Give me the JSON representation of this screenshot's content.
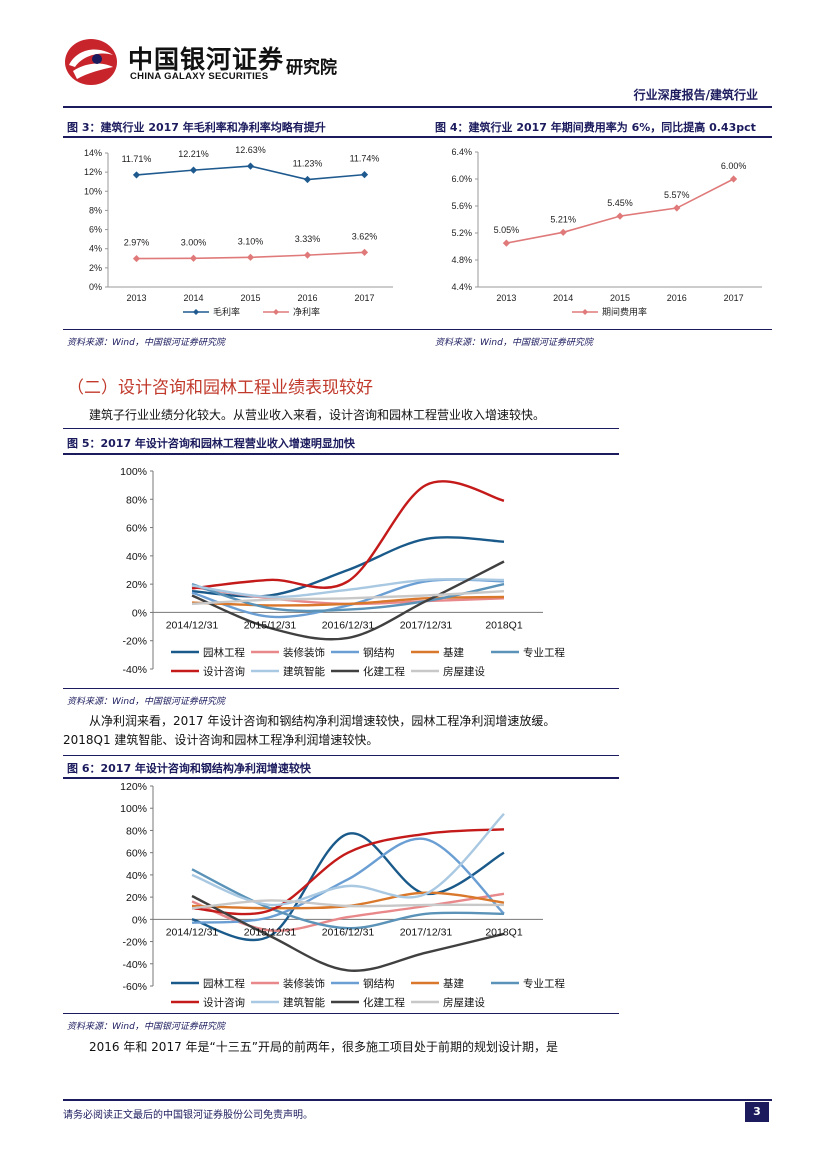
{
  "header": {
    "logo_cn": "中国银河证券",
    "logo_en": "CHINA GALAXY SECURITIES",
    "institute": "研究院",
    "report_type": "行业深度报告/建筑行业"
  },
  "fig3": {
    "title": "图 3：建筑行业 2017 年毛利率和净利率均略有提升",
    "source": "资料来源：Wind，中国银河证券研究院"
  },
  "fig4": {
    "title": "图 4：建筑行业 2017 年期间费用率为 6%，同比提高 0.43pct",
    "source": "资料来源：Wind，中国银河证券研究院"
  },
  "section": {
    "title": "（二）设计咨询和园林工程业绩表现较好",
    "para1": "建筑子行业业绩分化较大。从营业收入来看，设计咨询和园林工程营业收入增速较快。"
  },
  "fig5": {
    "title": "图 5：2017 年设计咨询和园林工程营业收入增速明显加快",
    "source": "资料来源：Wind，中国银河证券研究院"
  },
  "para2_line1": "从净利润来看，2017 年设计咨询和钢结构净利润增速较快，园林工程净利润增速放缓。",
  "para2_line2": "2018Q1 建筑智能、设计咨询和园林工程净利润增速较快。",
  "fig6": {
    "title": "图 6：2017 年设计咨询和钢结构净利润增速较快",
    "source": "资料来源：Wind，中国银河证券研究院"
  },
  "para3": "2016 年和 2017 年是“十三五”开局的前两年，很多施工项目处于前期的规划设计期，是",
  "footer": {
    "disclaimer": "请务必阅读正文最后的中国银河证券股份公司免责声明。",
    "page": "3"
  },
  "colors": {
    "园林工程": "#1a5a8a",
    "装修装饰": "#e8888a",
    "钢结构": "#6b9fd4",
    "基建": "#d9772b",
    "专业工程": "#5b93b8",
    "设计咨询": "#c41a1a",
    "建筑智能": "#a9c8e2",
    "化建工程": "#404040",
    "房屋建设": "#c8c8c8",
    "毛利率": "#1f5a8f",
    "净利率": "#e07a7a",
    "期间费用率": "#e07a7a"
  },
  "chart_data": [
    {
      "id": "fig3",
      "type": "line",
      "categories": [
        "2013",
        "2014",
        "2015",
        "2016",
        "2017"
      ],
      "ylim": [
        0,
        14
      ],
      "yticks": [
        0,
        2,
        4,
        6,
        8,
        10,
        12,
        14
      ],
      "tick_suffix": "%",
      "series": [
        {
          "name": "毛利率",
          "values": [
            11.71,
            12.21,
            12.63,
            11.23,
            11.74
          ],
          "labels": [
            "11.71%",
            "12.21%",
            "12.63%",
            "11.23%",
            "11.74%"
          ],
          "marker": "diamond"
        },
        {
          "name": "净利率",
          "values": [
            2.97,
            3.0,
            3.1,
            3.33,
            3.62
          ],
          "labels": [
            "2.97%",
            "3.00%",
            "3.10%",
            "3.33%",
            "3.62%"
          ],
          "marker": "diamond"
        }
      ]
    },
    {
      "id": "fig4",
      "type": "line",
      "categories": [
        "2013",
        "2014",
        "2015",
        "2016",
        "2017"
      ],
      "ylim": [
        4.4,
        6.4
      ],
      "yticks": [
        4.4,
        4.8,
        5.2,
        5.6,
        6.0,
        6.4
      ],
      "tick_labels": [
        "4.4%",
        "4.8%",
        "5.2%",
        "5.6%",
        "6.0%",
        "6.4%"
      ],
      "series": [
        {
          "name": "期间费用率",
          "values": [
            5.05,
            5.21,
            5.45,
            5.57,
            6.0
          ],
          "labels": [
            "5.05%",
            "5.21%",
            "5.45%",
            "5.57%",
            "6.00%"
          ],
          "marker": "diamond"
        }
      ]
    },
    {
      "id": "fig5",
      "type": "line",
      "categories": [
        "2014/12/31",
        "2015/12/31",
        "2016/12/31",
        "2017/12/31",
        "2018Q1"
      ],
      "ylim": [
        -40,
        100
      ],
      "yticks": [
        -40,
        -20,
        0,
        20,
        40,
        60,
        80,
        100
      ],
      "tick_suffix": "%",
      "series": [
        {
          "name": "园林工程",
          "values": [
            15,
            12,
            30,
            52,
            50
          ]
        },
        {
          "name": "装修装饰",
          "values": [
            18,
            10,
            6,
            8,
            10
          ]
        },
        {
          "name": "钢结构",
          "values": [
            14,
            -3,
            5,
            22,
            22
          ]
        },
        {
          "name": "基建",
          "values": [
            7,
            5,
            6,
            10,
            11
          ]
        },
        {
          "name": "专业工程",
          "values": [
            20,
            3,
            2,
            8,
            20
          ]
        },
        {
          "name": "设计咨询",
          "values": [
            17,
            23,
            22,
            90,
            79
          ]
        },
        {
          "name": "建筑智能",
          "values": [
            19,
            11,
            16,
            23,
            23
          ]
        },
        {
          "name": "化建工程",
          "values": [
            12,
            -11,
            -18,
            8,
            36
          ]
        },
        {
          "name": "房屋建设",
          "values": [
            6,
            9,
            10,
            12,
            15
          ]
        }
      ],
      "legend": [
        "园林工程",
        "装修装饰",
        "钢结构",
        "基建",
        "专业工程",
        "设计咨询",
        "建筑智能",
        "化建工程",
        "房屋建设"
      ]
    },
    {
      "id": "fig6",
      "type": "line",
      "categories": [
        "2014/12/31",
        "2015/12/31",
        "2016/12/31",
        "2017/12/31",
        "2018Q1"
      ],
      "ylim": [
        -60,
        120
      ],
      "yticks": [
        -60,
        -40,
        -20,
        0,
        20,
        40,
        60,
        80,
        100,
        120
      ],
      "tick_suffix": "%",
      "series": [
        {
          "name": "园林工程",
          "values": [
            0,
            -15,
            77,
            23,
            60
          ]
        },
        {
          "name": "装修装饰",
          "values": [
            16,
            -10,
            2,
            12,
            23
          ]
        },
        {
          "name": "钢结构",
          "values": [
            -3,
            2,
            36,
            72,
            5
          ]
        },
        {
          "name": "基建",
          "values": [
            12,
            10,
            12,
            24,
            15
          ]
        },
        {
          "name": "专业工程",
          "values": [
            45,
            10,
            -8,
            5,
            5
          ]
        },
        {
          "name": "设计咨询",
          "values": [
            10,
            8,
            60,
            77,
            81
          ]
        },
        {
          "name": "建筑智能",
          "values": [
            40,
            13,
            30,
            23,
            95
          ]
        },
        {
          "name": "化建工程",
          "values": [
            21,
            -15,
            -46,
            -30,
            -13
          ]
        },
        {
          "name": "房屋建设",
          "values": [
            10,
            17,
            12,
            13,
            13
          ]
        }
      ],
      "legend": [
        "园林工程",
        "装修装饰",
        "钢结构",
        "基建",
        "专业工程",
        "设计咨询",
        "建筑智能",
        "化建工程",
        "房屋建设"
      ]
    }
  ]
}
